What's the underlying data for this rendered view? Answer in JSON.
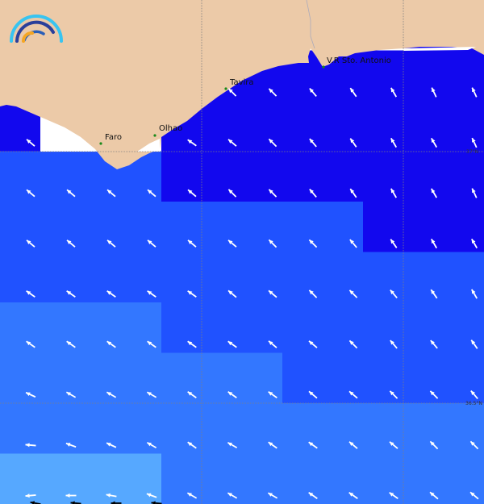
{
  "map": {
    "colors": {
      "land": "#eccaa8",
      "no_data": "#ffffff",
      "level_1": "#1208ee",
      "level_2": "#2052ff",
      "level_3": "#3377ff",
      "level_4": "#56a8ff",
      "arrow": "#ffffff",
      "grid": "#808080"
    },
    "cell_levels": [
      [
        0,
        0,
        0,
        0,
        0,
        0,
        0,
        0,
        0,
        0,
        1,
        1
      ],
      [
        1,
        1,
        1,
        1,
        1,
        1,
        1,
        1,
        1,
        1,
        1,
        1
      ],
      [
        1,
        0,
        0,
        0,
        1,
        1,
        1,
        1,
        1,
        1,
        1,
        1
      ],
      [
        2,
        2,
        2,
        2,
        1,
        1,
        1,
        1,
        1,
        1,
        1,
        1
      ],
      [
        2,
        2,
        2,
        2,
        2,
        2,
        2,
        2,
        2,
        1,
        1,
        1
      ],
      [
        2,
        2,
        2,
        2,
        2,
        2,
        2,
        2,
        2,
        2,
        2,
        2
      ],
      [
        3,
        3,
        3,
        3,
        2,
        2,
        2,
        2,
        2,
        2,
        2,
        2
      ],
      [
        3,
        3,
        3,
        3,
        3,
        3,
        3,
        2,
        2,
        2,
        2,
        2
      ],
      [
        3,
        3,
        3,
        3,
        3,
        3,
        3,
        3,
        3,
        3,
        3,
        3
      ],
      [
        4,
        4,
        4,
        4,
        3,
        3,
        3,
        3,
        3,
        3,
        3,
        3
      ]
    ],
    "arrow_headings_deg": [
      [
        null,
        null,
        null,
        null,
        null,
        null,
        null,
        null,
        null,
        null,
        null,
        null
      ],
      [
        null,
        null,
        null,
        null,
        null,
        315,
        315,
        320,
        325,
        330,
        335,
        335
      ],
      [
        310,
        null,
        null,
        null,
        305,
        310,
        315,
        320,
        325,
        330,
        330,
        335
      ],
      [
        310,
        310,
        310,
        310,
        310,
        315,
        315,
        320,
        325,
        330,
        330,
        335
      ],
      [
        310,
        310,
        310,
        310,
        310,
        310,
        315,
        315,
        320,
        325,
        330,
        330
      ],
      [
        305,
        305,
        305,
        305,
        305,
        310,
        310,
        315,
        315,
        320,
        325,
        330
      ],
      [
        305,
        305,
        305,
        305,
        305,
        305,
        310,
        310,
        315,
        320,
        320,
        325
      ],
      [
        295,
        300,
        300,
        300,
        305,
        305,
        305,
        310,
        310,
        315,
        315,
        320
      ],
      [
        275,
        290,
        295,
        300,
        305,
        300,
        305,
        305,
        310,
        310,
        315,
        315
      ],
      [
        265,
        270,
        280,
        290,
        300,
        300,
        300,
        305,
        305,
        305,
        310,
        310
      ]
    ],
    "bottom_arrows_black": [
      280,
      275,
      270,
      275
    ],
    "towns": [
      {
        "name": "Faro"
      },
      {
        "name": "Olhao"
      },
      {
        "name": "Tavira"
      },
      {
        "name": "V.R Sto. Antonio"
      }
    ],
    "latitude_labels": [
      "37°N",
      "36.5°N"
    ]
  }
}
